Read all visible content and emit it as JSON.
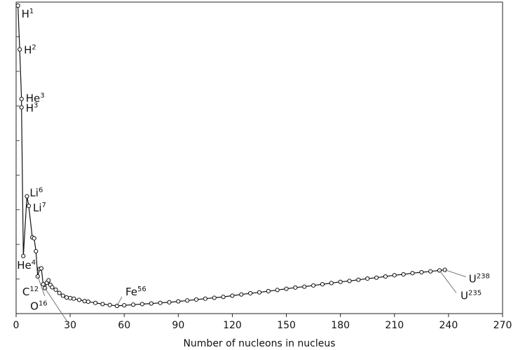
{
  "chart_data": {
    "type": "line",
    "title": "",
    "xlabel": "Number of nucleons in nucleus",
    "ylabel": "",
    "xlim": [
      0,
      270
    ],
    "ylim": [
      0,
      1
    ],
    "x_ticks": [
      0,
      30,
      60,
      90,
      120,
      150,
      180,
      210,
      240,
      270
    ],
    "x_tick_labels": [
      "0",
      "30",
      "60",
      "90",
      "120",
      "150",
      "180",
      "210",
      "240",
      "270"
    ],
    "y_tick_labels_shown": false,
    "grid": false,
    "legend": "none",
    "series": [
      {
        "points": [
          [
            1,
            1.0
          ],
          [
            2,
            0.854
          ],
          [
            3,
            0.689
          ],
          [
            3,
            0.661
          ],
          [
            4,
            0.166
          ],
          [
            6,
            0.365
          ],
          [
            7,
            0.333
          ],
          [
            9,
            0.228
          ],
          [
            10,
            0.225
          ],
          [
            11,
            0.182
          ],
          [
            12,
            0.098
          ],
          [
            13,
            0.123
          ],
          [
            14,
            0.125
          ],
          [
            15,
            0.072
          ],
          [
            16,
            0.059
          ],
          [
            17,
            0.077
          ],
          [
            18,
            0.085
          ],
          [
            19,
            0.07
          ],
          [
            20,
            0.062
          ],
          [
            22,
            0.054
          ],
          [
            24,
            0.043
          ],
          [
            26,
            0.034
          ],
          [
            28,
            0.028
          ],
          [
            30,
            0.026
          ],
          [
            32,
            0.024
          ],
          [
            35,
            0.02
          ],
          [
            38,
            0.016
          ],
          [
            40,
            0.014
          ],
          [
            44,
            0.01
          ],
          [
            48,
            0.006
          ],
          [
            52,
            0.003
          ],
          [
            56,
            0.0
          ],
          [
            60,
            0.002
          ],
          [
            65,
            0.004
          ],
          [
            70,
            0.006
          ],
          [
            75,
            0.008
          ],
          [
            80,
            0.01
          ],
          [
            85,
            0.012
          ],
          [
            90,
            0.015
          ],
          [
            95,
            0.018
          ],
          [
            100,
            0.021
          ],
          [
            105,
            0.024
          ],
          [
            110,
            0.027
          ],
          [
            115,
            0.03
          ],
          [
            120,
            0.034
          ],
          [
            125,
            0.038
          ],
          [
            130,
            0.042
          ],
          [
            135,
            0.045
          ],
          [
            140,
            0.049
          ],
          [
            145,
            0.053
          ],
          [
            150,
            0.057
          ],
          [
            155,
            0.061
          ],
          [
            160,
            0.064
          ],
          [
            165,
            0.068
          ],
          [
            170,
            0.072
          ],
          [
            175,
            0.076
          ],
          [
            180,
            0.08
          ],
          [
            185,
            0.083
          ],
          [
            190,
            0.087
          ],
          [
            195,
            0.091
          ],
          [
            200,
            0.094
          ],
          [
            205,
            0.098
          ],
          [
            210,
            0.102
          ],
          [
            215,
            0.105
          ],
          [
            220,
            0.109
          ],
          [
            225,
            0.112
          ],
          [
            230,
            0.115
          ],
          [
            235,
            0.118
          ],
          [
            238,
            0.12
          ]
        ]
      }
    ],
    "annotations": [
      {
        "base": "H",
        "sup": "1",
        "x": 1,
        "y": 1.0,
        "leader": false
      },
      {
        "base": "H",
        "sup": "2",
        "x": 2,
        "y": 0.854,
        "leader": false
      },
      {
        "base": "He",
        "sup": "3",
        "x": 3,
        "y": 0.689,
        "leader": false
      },
      {
        "base": "H",
        "sup": "3",
        "x": 3,
        "y": 0.661,
        "leader": false
      },
      {
        "base": "Li",
        "sup": "6",
        "x": 6,
        "y": 0.365,
        "leader": false
      },
      {
        "base": "Li",
        "sup": "7",
        "x": 7,
        "y": 0.333,
        "leader": false
      },
      {
        "base": "He",
        "sup": "4",
        "x": 4,
        "y": 0.166,
        "leader": false
      },
      {
        "base": "C",
        "sup": "12",
        "x": 12,
        "y": 0.098,
        "leader": true
      },
      {
        "base": "O",
        "sup": "16",
        "x": 16,
        "y": 0.059,
        "leader": true
      },
      {
        "base": "Fe",
        "sup": "56",
        "x": 56,
        "y": 0.0,
        "leader": true
      },
      {
        "base": "U",
        "sup": "238",
        "x": 238,
        "y": 0.12,
        "leader": true
      },
      {
        "base": "U",
        "sup": "235",
        "x": 235,
        "y": 0.118,
        "leader": true
      }
    ]
  }
}
